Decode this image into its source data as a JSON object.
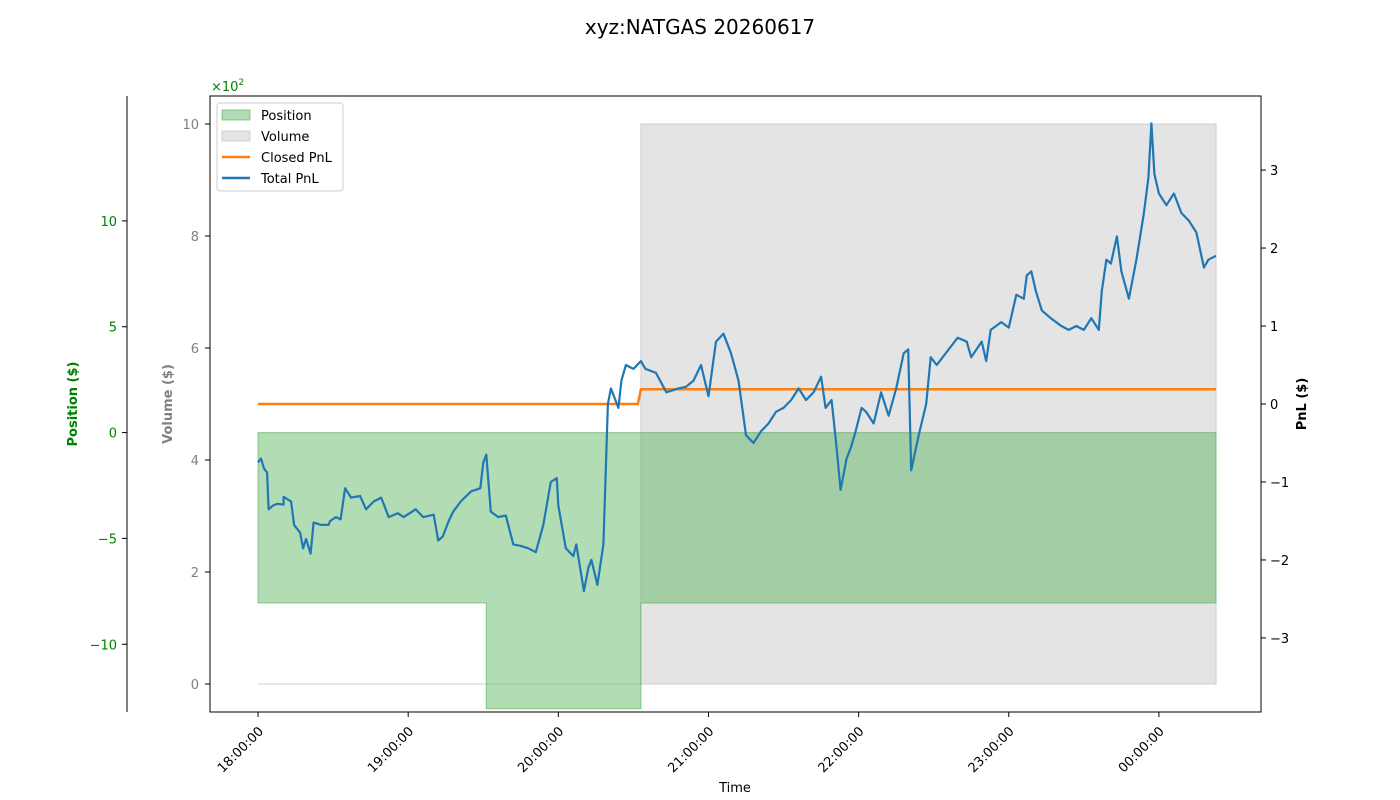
{
  "chart_data": {
    "type": "line",
    "title": "xyz:NATGAS 20260617",
    "xlabel": "Time",
    "x_ticks": [
      "18:00:00",
      "19:00:00",
      "20:00:00",
      "21:00:00",
      "22:00:00",
      "23:00:00",
      "00:00:00"
    ],
    "x_range_hours": [
      17.68,
      24.68
    ],
    "axes": {
      "position": {
        "label": "Position ($)",
        "ticks": [
          10,
          5,
          0,
          -5,
          -10
        ],
        "tick_labels": [
          "10",
          "5",
          "0",
          "−5",
          "−10"
        ],
        "range": [
          -13.2,
          15.9
        ],
        "color": "#008000"
      },
      "volume": {
        "label": "Volume ($)",
        "ticks": [
          0,
          2,
          4,
          6,
          8,
          10
        ],
        "tick_labels": [
          "0",
          "2",
          "4",
          "6",
          "8",
          "10"
        ],
        "range": [
          -0.5,
          10.5
        ],
        "multiplier_label": "×10",
        "multiplier_exp": "2",
        "color": "#808080"
      },
      "pnl": {
        "label": "PnL ($)",
        "ticks": [
          3,
          2,
          1,
          0,
          -1,
          -2,
          -3
        ],
        "tick_labels": [
          "3",
          "2",
          "1",
          "0",
          "−1",
          "−2",
          "−3"
        ],
        "range": [
          -3.95,
          3.95
        ],
        "color": "#000000"
      }
    },
    "legend": {
      "placement": "top-left",
      "entries": [
        {
          "label": "Position",
          "kind": "patch",
          "color": "#7fc47f"
        },
        {
          "label": "Volume",
          "kind": "patch",
          "color": "#d9d9d9"
        },
        {
          "label": "Closed PnL",
          "kind": "line",
          "color": "#ff7f0e"
        },
        {
          "label": "Total PnL",
          "kind": "line",
          "color": "#1f77b4"
        }
      ]
    },
    "series": [
      {
        "name": "Position",
        "axis": "position",
        "color": "#4caf50",
        "points": [
          [
            18.0,
            0
          ],
          [
            18.0,
            -8.05
          ],
          [
            19.52,
            -8.05
          ],
          [
            19.52,
            -13.05
          ],
          [
            20.55,
            -13.05
          ],
          [
            20.55,
            -8.05
          ],
          [
            24.38,
            -8.05
          ],
          [
            24.38,
            0
          ]
        ]
      },
      {
        "name": "Volume",
        "axis": "volume",
        "color": "#bdbdbd",
        "points": [
          [
            18.0,
            0
          ],
          [
            20.55,
            0
          ],
          [
            20.55,
            10.0
          ],
          [
            24.38,
            10.0
          ],
          [
            24.38,
            0
          ]
        ]
      },
      {
        "name": "Closed PnL",
        "axis": "pnl",
        "color": "#ff7f0e",
        "points": [
          [
            18.0,
            0
          ],
          [
            20.53,
            0
          ],
          [
            20.55,
            0.19
          ],
          [
            24.38,
            0.19
          ]
        ]
      },
      {
        "name": "Total PnL",
        "axis": "pnl",
        "color": "#1f77b4",
        "points": [
          [
            18.0,
            -0.75
          ],
          [
            18.02,
            -0.7
          ],
          [
            18.04,
            -0.83
          ],
          [
            18.06,
            -0.88
          ],
          [
            18.07,
            -1.35
          ],
          [
            18.1,
            -1.3
          ],
          [
            18.13,
            -1.28
          ],
          [
            18.17,
            -1.29
          ],
          [
            18.17,
            -1.19
          ],
          [
            18.22,
            -1.25
          ],
          [
            18.24,
            -1.55
          ],
          [
            18.28,
            -1.65
          ],
          [
            18.3,
            -1.85
          ],
          [
            18.32,
            -1.73
          ],
          [
            18.35,
            -1.92
          ],
          [
            18.37,
            -1.52
          ],
          [
            18.42,
            -1.55
          ],
          [
            18.47,
            -1.55
          ],
          [
            18.48,
            -1.5
          ],
          [
            18.52,
            -1.45
          ],
          [
            18.55,
            -1.48
          ],
          [
            18.58,
            -1.08
          ],
          [
            18.62,
            -1.2
          ],
          [
            18.68,
            -1.18
          ],
          [
            18.72,
            -1.35
          ],
          [
            18.77,
            -1.25
          ],
          [
            18.82,
            -1.2
          ],
          [
            18.87,
            -1.45
          ],
          [
            18.93,
            -1.4
          ],
          [
            18.97,
            -1.45
          ],
          [
            19.05,
            -1.35
          ],
          [
            19.1,
            -1.45
          ],
          [
            19.17,
            -1.42
          ],
          [
            19.2,
            -1.75
          ],
          [
            19.23,
            -1.7
          ],
          [
            19.27,
            -1.5
          ],
          [
            19.3,
            -1.38
          ],
          [
            19.35,
            -1.25
          ],
          [
            19.42,
            -1.12
          ],
          [
            19.45,
            -1.1
          ],
          [
            19.48,
            -1.08
          ],
          [
            19.5,
            -0.75
          ],
          [
            19.52,
            -0.65
          ],
          [
            19.55,
            -1.38
          ],
          [
            19.6,
            -1.45
          ],
          [
            19.65,
            -1.43
          ],
          [
            19.7,
            -1.8
          ],
          [
            19.75,
            -1.82
          ],
          [
            19.8,
            -1.85
          ],
          [
            19.85,
            -1.9
          ],
          [
            19.9,
            -1.55
          ],
          [
            19.95,
            -1.0
          ],
          [
            19.99,
            -0.95
          ],
          [
            20.0,
            -1.3
          ],
          [
            20.05,
            -1.85
          ],
          [
            20.1,
            -1.95
          ],
          [
            20.12,
            -1.8
          ],
          [
            20.17,
            -2.4
          ],
          [
            20.2,
            -2.1
          ],
          [
            20.22,
            -2.0
          ],
          [
            20.26,
            -2.32
          ],
          [
            20.3,
            -1.8
          ],
          [
            20.33,
            0.0
          ],
          [
            20.35,
            0.2
          ],
          [
            20.4,
            -0.05
          ],
          [
            20.42,
            0.3
          ],
          [
            20.45,
            0.5
          ],
          [
            20.5,
            0.45
          ],
          [
            20.55,
            0.55
          ],
          [
            20.58,
            0.45
          ],
          [
            20.65,
            0.4
          ],
          [
            20.72,
            0.15
          ],
          [
            20.8,
            0.2
          ],
          [
            20.85,
            0.22
          ],
          [
            20.9,
            0.3
          ],
          [
            20.95,
            0.5
          ],
          [
            21.0,
            0.1
          ],
          [
            21.05,
            0.8
          ],
          [
            21.1,
            0.9
          ],
          [
            21.15,
            0.65
          ],
          [
            21.2,
            0.3
          ],
          [
            21.25,
            -0.4
          ],
          [
            21.3,
            -0.5
          ],
          [
            21.35,
            -0.35
          ],
          [
            21.4,
            -0.25
          ],
          [
            21.45,
            -0.1
          ],
          [
            21.5,
            -0.05
          ],
          [
            21.55,
            0.05
          ],
          [
            21.6,
            0.2
          ],
          [
            21.65,
            0.05
          ],
          [
            21.7,
            0.15
          ],
          [
            21.75,
            0.35
          ],
          [
            21.78,
            -0.05
          ],
          [
            21.82,
            0.05
          ],
          [
            21.85,
            -0.5
          ],
          [
            21.88,
            -1.1
          ],
          [
            21.92,
            -0.7
          ],
          [
            21.95,
            -0.55
          ],
          [
            21.98,
            -0.35
          ],
          [
            22.02,
            -0.05
          ],
          [
            22.05,
            -0.1
          ],
          [
            22.1,
            -0.25
          ],
          [
            22.15,
            0.15
          ],
          [
            22.2,
            -0.15
          ],
          [
            22.25,
            0.2
          ],
          [
            22.3,
            0.65
          ],
          [
            22.33,
            0.7
          ],
          [
            22.35,
            -0.85
          ],
          [
            22.4,
            -0.4
          ],
          [
            22.45,
            0.0
          ],
          [
            22.48,
            0.6
          ],
          [
            22.52,
            0.5
          ],
          [
            22.58,
            0.65
          ],
          [
            22.62,
            0.75
          ],
          [
            22.66,
            0.85
          ],
          [
            22.72,
            0.8
          ],
          [
            22.75,
            0.6
          ],
          [
            22.82,
            0.8
          ],
          [
            22.85,
            0.55
          ],
          [
            22.88,
            0.95
          ],
          [
            22.95,
            1.05
          ],
          [
            23.0,
            0.98
          ],
          [
            23.05,
            1.4
          ],
          [
            23.1,
            1.35
          ],
          [
            23.12,
            1.65
          ],
          [
            23.15,
            1.7
          ],
          [
            23.18,
            1.45
          ],
          [
            23.22,
            1.2
          ],
          [
            23.28,
            1.1
          ],
          [
            23.35,
            1.0
          ],
          [
            23.4,
            0.95
          ],
          [
            23.45,
            1.0
          ],
          [
            23.5,
            0.95
          ],
          [
            23.55,
            1.1
          ],
          [
            23.6,
            0.95
          ],
          [
            23.62,
            1.45
          ],
          [
            23.65,
            1.85
          ],
          [
            23.68,
            1.8
          ],
          [
            23.72,
            2.15
          ],
          [
            23.75,
            1.7
          ],
          [
            23.8,
            1.35
          ],
          [
            23.85,
            1.85
          ],
          [
            23.9,
            2.45
          ],
          [
            23.93,
            2.9
          ],
          [
            23.95,
            3.6
          ],
          [
            23.97,
            2.95
          ],
          [
            24.0,
            2.7
          ],
          [
            24.05,
            2.55
          ],
          [
            24.1,
            2.7
          ],
          [
            24.15,
            2.45
          ],
          [
            24.2,
            2.35
          ],
          [
            24.25,
            2.2
          ],
          [
            24.3,
            1.75
          ],
          [
            24.33,
            1.85
          ],
          [
            24.38,
            1.9
          ]
        ]
      }
    ]
  }
}
